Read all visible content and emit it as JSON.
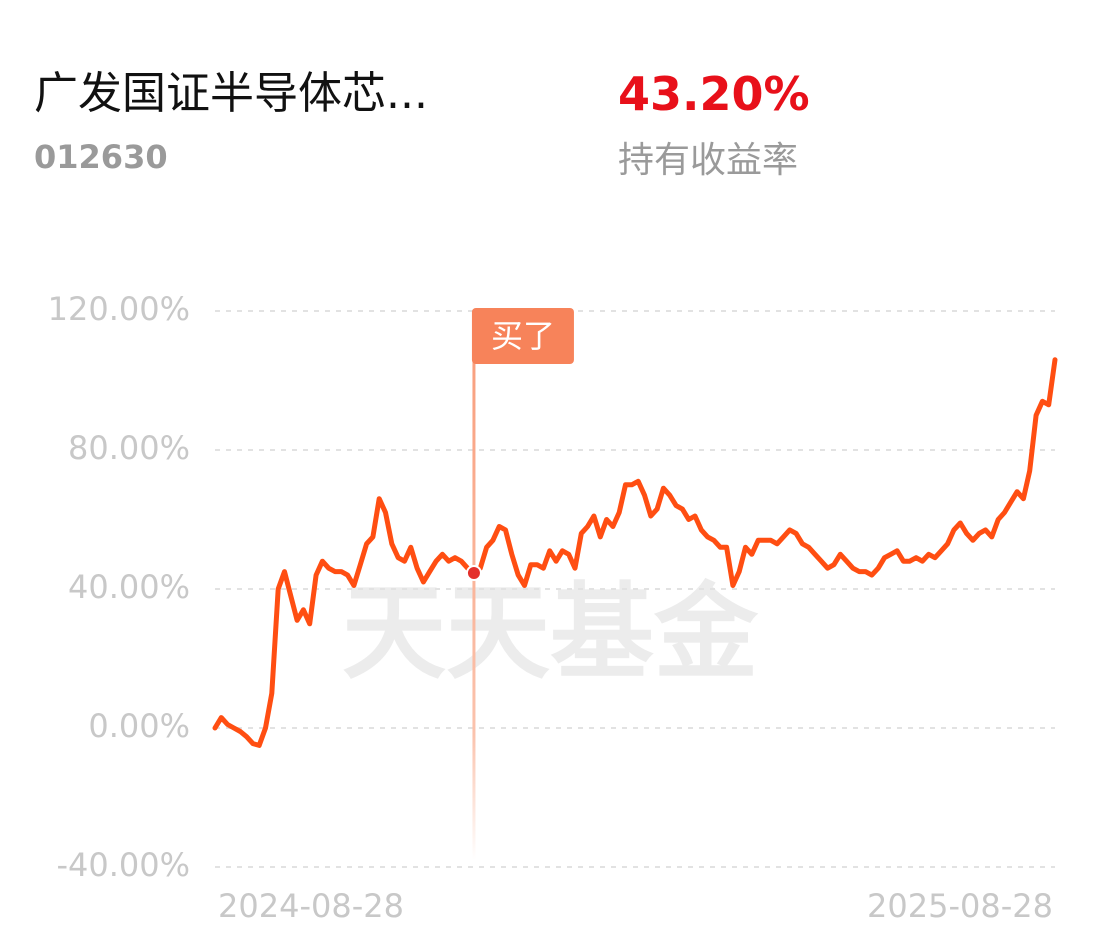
{
  "header": {
    "fund_name": "广发国证半导体芯...",
    "fund_code": "012630",
    "return": "43.20%",
    "return_label": "持有收益率"
  },
  "chart_data": {
    "type": "line",
    "watermark": "天天基金",
    "categories": [
      "2024-08-28",
      null,
      null,
      null,
      null,
      null,
      null,
      null,
      null,
      null,
      null,
      null,
      null,
      null,
      null,
      null,
      null,
      null,
      null,
      null,
      null,
      null,
      null,
      null,
      null,
      null,
      null,
      null,
      null,
      null,
      null,
      null,
      null,
      null,
      null,
      null,
      null,
      null,
      null,
      null,
      null,
      null,
      null,
      null,
      null,
      null,
      null,
      null,
      null,
      null,
      null,
      null,
      null,
      null,
      null,
      null,
      null,
      null,
      null,
      null,
      null,
      null,
      null,
      null,
      null,
      null,
      null,
      null,
      null,
      null,
      null,
      null,
      null,
      null,
      null,
      null,
      null,
      null,
      null,
      null,
      null,
      null,
      null,
      null,
      null,
      null,
      null,
      null,
      null,
      null,
      null,
      null,
      null,
      null,
      null,
      null,
      null,
      null,
      null,
      null,
      null,
      null,
      null,
      null,
      null,
      null,
      null,
      null,
      null,
      null,
      null,
      null,
      null,
      null,
      null,
      null,
      null,
      null,
      null,
      null,
      null,
      null,
      null,
      null,
      null,
      null,
      null,
      null,
      null,
      null,
      null,
      null,
      null,
      "2025-08-28"
    ],
    "series": [
      {
        "color": "#ff4e12",
        "values": [
          0,
          3,
          1,
          0,
          -1,
          -2.5,
          -4.5,
          -5,
          0,
          10,
          40,
          45,
          38,
          31,
          34,
          30,
          44,
          48,
          46,
          45,
          45,
          44,
          41,
          47,
          53,
          55,
          66,
          62,
          53,
          49,
          48,
          52,
          46,
          42,
          45,
          48,
          50,
          48,
          49,
          48,
          46,
          44.6,
          46,
          52,
          54,
          58,
          57,
          50,
          44,
          41,
          47,
          47,
          46,
          51,
          48,
          51,
          50,
          46,
          56,
          58,
          61,
          55,
          60,
          58,
          62,
          70,
          70,
          71,
          67,
          61,
          63,
          69,
          67,
          64,
          63,
          60,
          61,
          57,
          55,
          54,
          52,
          52,
          41,
          45,
          52,
          50,
          54,
          54,
          54,
          53,
          55,
          57,
          56,
          53,
          52,
          50,
          48,
          46,
          47,
          50,
          48,
          46,
          45,
          45,
          44,
          46,
          49,
          50,
          51,
          48,
          48,
          49,
          48,
          50,
          49,
          51,
          53,
          57,
          59,
          56,
          54,
          56,
          57,
          55,
          60,
          62,
          65,
          68,
          66,
          74,
          90,
          94,
          93,
          106
        ]
      }
    ],
    "marker": {
      "label": "买了",
      "index": 41
    },
    "ylim": [
      -40,
      120
    ],
    "yticks": [
      {
        "value": -40,
        "label": "-40.00%"
      },
      {
        "value": 0,
        "label": "0.00%"
      },
      {
        "value": 40,
        "label": "40.00%"
      },
      {
        "value": 80,
        "label": "80.00%"
      },
      {
        "value": 120,
        "label": "120.00%"
      }
    ],
    "grid": true
  }
}
